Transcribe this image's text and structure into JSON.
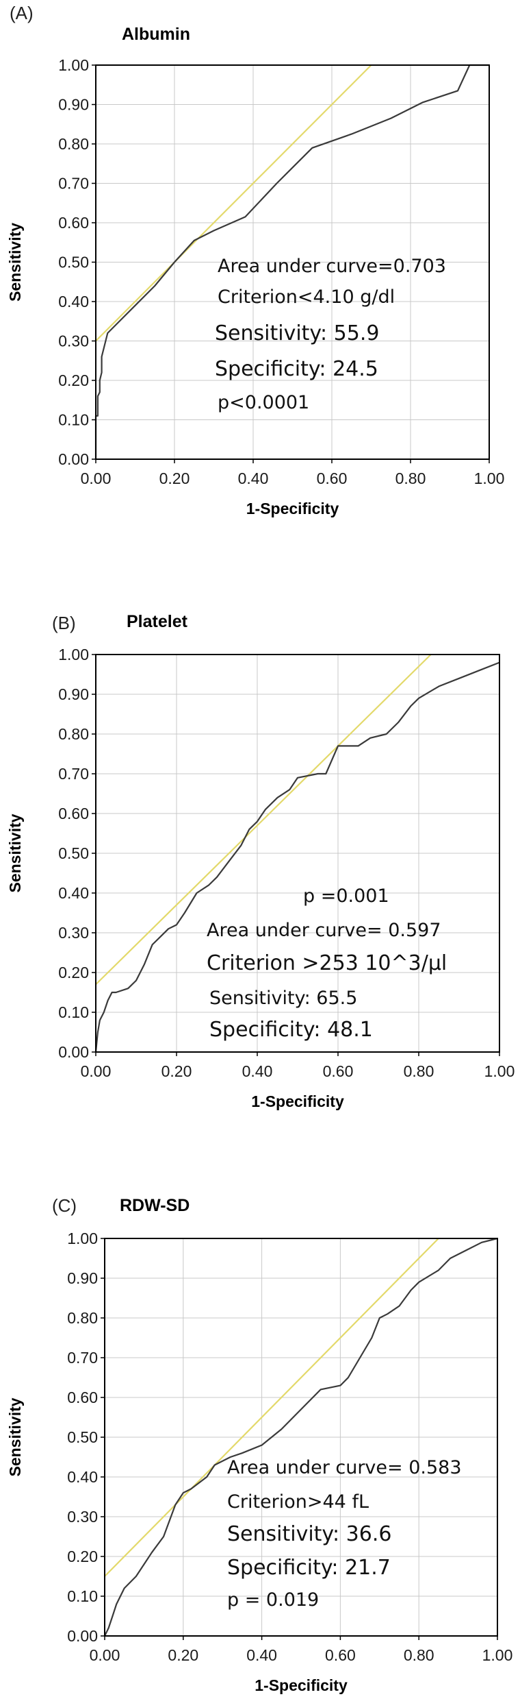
{
  "chart_data": [
    {
      "type": "line",
      "panel_label": "(A)",
      "title": "Albumin",
      "xlabel": "1-Specificity",
      "ylabel": "Sensitivity",
      "xlim": [
        0,
        1
      ],
      "ylim": [
        0,
        1
      ],
      "grid": true,
      "x_ticks": [
        "0.00",
        "0.20",
        "0.40",
        "0.60",
        "0.80",
        "1.00"
      ],
      "y_ticks": [
        "0.00",
        "0.10",
        "0.20",
        "0.30",
        "0.40",
        "0.50",
        "0.60",
        "0.70",
        "0.80",
        "0.90",
        "1.00"
      ],
      "series": [
        {
          "name": "ROC",
          "x": [
            0.0,
            0.0,
            0.005,
            0.005,
            0.01,
            0.01,
            0.015,
            0.015,
            0.02,
            0.025,
            0.03,
            0.05,
            0.1,
            0.15,
            0.2,
            0.25,
            0.3,
            0.38,
            0.46,
            0.55,
            0.65,
            0.75,
            0.83,
            0.92,
            0.95,
            0.97,
            1.0
          ],
          "y": [
            0.0,
            0.11,
            0.11,
            0.16,
            0.17,
            0.2,
            0.22,
            0.26,
            0.28,
            0.3,
            0.32,
            0.34,
            0.39,
            0.44,
            0.5,
            0.555,
            0.58,
            0.615,
            0.7,
            0.79,
            0.825,
            0.865,
            0.905,
            0.935,
            1.0,
            1.0,
            1.0
          ]
        },
        {
          "name": "Reference",
          "x": [
            0.0,
            0.7
          ],
          "y": [
            0.3,
            1.0
          ]
        }
      ],
      "annotations": [
        "Area under curve=0.703",
        "Criterion<4.10 g/dl",
        "Sensitivity: 55.9",
        "Specificity: 24.5",
        "p<0.0001"
      ]
    },
    {
      "type": "line",
      "panel_label": "(B)",
      "title": "Platelet",
      "xlabel": "1-Specificity",
      "ylabel": "Sensitivity",
      "xlim": [
        0,
        1
      ],
      "ylim": [
        0,
        1
      ],
      "grid": true,
      "x_ticks": [
        "0.00",
        "0.20",
        "0.40",
        "0.60",
        "0.80",
        "1.00"
      ],
      "y_ticks": [
        "0.00",
        "0.10",
        "0.20",
        "0.30",
        "0.40",
        "0.50",
        "0.60",
        "0.70",
        "0.80",
        "0.90",
        "1.00"
      ],
      "series": [
        {
          "name": "ROC",
          "x": [
            0.0,
            0.005,
            0.01,
            0.02,
            0.03,
            0.04,
            0.05,
            0.08,
            0.1,
            0.12,
            0.14,
            0.16,
            0.18,
            0.2,
            0.22,
            0.25,
            0.28,
            0.3,
            0.33,
            0.36,
            0.38,
            0.4,
            0.42,
            0.45,
            0.48,
            0.5,
            0.55,
            0.57,
            0.6,
            0.65,
            0.68,
            0.72,
            0.75,
            0.78,
            0.8,
            0.85,
            0.9,
            0.95,
            1.0
          ],
          "y": [
            0.0,
            0.05,
            0.08,
            0.1,
            0.13,
            0.15,
            0.15,
            0.16,
            0.18,
            0.22,
            0.27,
            0.29,
            0.31,
            0.32,
            0.35,
            0.4,
            0.42,
            0.44,
            0.48,
            0.52,
            0.56,
            0.58,
            0.61,
            0.64,
            0.66,
            0.69,
            0.7,
            0.7,
            0.77,
            0.77,
            0.79,
            0.8,
            0.83,
            0.87,
            0.89,
            0.92,
            0.94,
            0.96,
            0.98
          ]
        },
        {
          "name": "Reference",
          "x": [
            0.0,
            0.83
          ],
          "y": [
            0.17,
            1.0
          ]
        }
      ],
      "annotations": [
        "p =0.001",
        "Area under curve= 0.597",
        "Criterion >253 10^3/µl",
        "Sensitivity: 65.5",
        "Specificity: 48.1"
      ]
    },
    {
      "type": "line",
      "panel_label": "(C)",
      "title": "RDW-SD",
      "xlabel": "1-Specificity",
      "ylabel": "Sensitivity",
      "xlim": [
        0,
        1
      ],
      "ylim": [
        0,
        1
      ],
      "grid": true,
      "x_ticks": [
        "0.00",
        "0.20",
        "0.40",
        "0.60",
        "0.80",
        "1.00"
      ],
      "y_ticks": [
        "0.00",
        "0.10",
        "0.20",
        "0.30",
        "0.40",
        "0.50",
        "0.60",
        "0.70",
        "0.80",
        "0.90",
        "1.00"
      ],
      "series": [
        {
          "name": "ROC",
          "x": [
            0.0,
            0.01,
            0.02,
            0.03,
            0.05,
            0.08,
            0.1,
            0.12,
            0.15,
            0.18,
            0.2,
            0.22,
            0.26,
            0.28,
            0.32,
            0.35,
            0.4,
            0.45,
            0.5,
            0.55,
            0.6,
            0.62,
            0.65,
            0.68,
            0.7,
            0.72,
            0.75,
            0.78,
            0.8,
            0.85,
            0.88,
            0.92,
            0.96,
            1.0
          ],
          "y": [
            0.0,
            0.02,
            0.05,
            0.08,
            0.12,
            0.15,
            0.18,
            0.21,
            0.25,
            0.33,
            0.36,
            0.37,
            0.4,
            0.43,
            0.45,
            0.46,
            0.48,
            0.52,
            0.57,
            0.62,
            0.63,
            0.65,
            0.7,
            0.75,
            0.8,
            0.81,
            0.83,
            0.87,
            0.89,
            0.92,
            0.95,
            0.97,
            0.99,
            1.0
          ]
        },
        {
          "name": "Reference",
          "x": [
            0.0,
            0.85
          ],
          "y": [
            0.15,
            1.0
          ]
        }
      ],
      "annotations": [
        "Area under curve= 0.583",
        "Criterion>44 fL",
        "Sensitivity: 36.6",
        "Specificity: 21.7",
        "p = 0.019"
      ]
    }
  ],
  "colors": {
    "roc": "#3a3a3a",
    "reference": "#e3d96a",
    "grid": "#c8c8c8",
    "frame": "#000000"
  }
}
